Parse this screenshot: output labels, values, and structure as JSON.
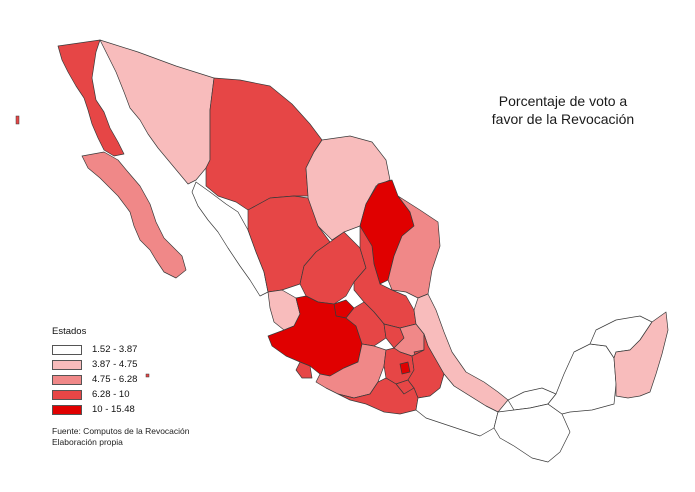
{
  "map": {
    "title_line1": "Porcentaje de voto a",
    "title_line2": "favor de la Revocación",
    "legend": {
      "title": "Estados",
      "classes": [
        {
          "label": "1.52 - 3.87",
          "color": "#ffffff"
        },
        {
          "label": "3.87 - 4.75",
          "color": "#f8bcbc"
        },
        {
          "label": "4.75 - 6.28",
          "color": "#f08888"
        },
        {
          "label": "6.28 - 10",
          "color": "#e64646"
        },
        {
          "label": "10 - 15.48",
          "color": "#e00000"
        }
      ]
    },
    "source_line1": "Fuente: Computos de la Revocación",
    "source_line2": "Elaboración propia",
    "states": [
      {
        "name": "Baja California",
        "class": 3
      },
      {
        "name": "Sonora",
        "class": 1
      },
      {
        "name": "Chihuahua",
        "class": 3
      },
      {
        "name": "Coahuila",
        "class": 1
      },
      {
        "name": "Nuevo León",
        "class": 4
      },
      {
        "name": "Tamaulipas",
        "class": 2
      },
      {
        "name": "Baja California Sur",
        "class": 2
      },
      {
        "name": "Sinaloa",
        "class": 0
      },
      {
        "name": "Durango",
        "class": 3
      },
      {
        "name": "Zacatecas",
        "class": 3
      },
      {
        "name": "San Luis Potosí",
        "class": 3
      },
      {
        "name": "Nayarit",
        "class": 1
      },
      {
        "name": "Aguascalientes",
        "class": 4
      },
      {
        "name": "Jalisco",
        "class": 4
      },
      {
        "name": "Guanajuato",
        "class": 3
      },
      {
        "name": "Querétaro",
        "class": 3
      },
      {
        "name": "Hidalgo",
        "class": 2
      },
      {
        "name": "Veracruz",
        "class": 1
      },
      {
        "name": "Colima",
        "class": 3
      },
      {
        "name": "Michoacán",
        "class": 2
      },
      {
        "name": "Estado de México",
        "class": 3
      },
      {
        "name": "Ciudad de México",
        "class": 4
      },
      {
        "name": "Morelos",
        "class": 3
      },
      {
        "name": "Tlaxcala",
        "class": 3
      },
      {
        "name": "Puebla",
        "class": 3
      },
      {
        "name": "Guerrero",
        "class": 3
      },
      {
        "name": "Oaxaca",
        "class": 0
      },
      {
        "name": "Tabasco",
        "class": 0
      },
      {
        "name": "Chiapas",
        "class": 0
      },
      {
        "name": "Campeche",
        "class": 0
      },
      {
        "name": "Yucatán",
        "class": 0
      },
      {
        "name": "Quintana Roo",
        "class": 1
      }
    ]
  }
}
